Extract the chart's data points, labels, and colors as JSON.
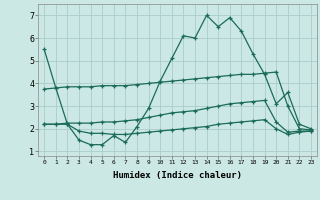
{
  "xlabel": "Humidex (Indice chaleur)",
  "bg_color": "#cce8e4",
  "grid_color": "#aaccca",
  "line_color": "#1a6b5a",
  "ylim": [
    0.8,
    7.5
  ],
  "xlim": [
    -0.5,
    23.5
  ],
  "yticks": [
    1,
    2,
    3,
    4,
    5,
    6,
    7
  ],
  "xticks": [
    0,
    1,
    2,
    3,
    4,
    5,
    6,
    7,
    8,
    9,
    10,
    11,
    12,
    13,
    14,
    15,
    16,
    17,
    18,
    19,
    20,
    21,
    22,
    23
  ],
  "series1_x": [
    0,
    1,
    2,
    3,
    4,
    5,
    6,
    7,
    8,
    9,
    10,
    11,
    12,
    13,
    14,
    15,
    16,
    17,
    18,
    19,
    20,
    21,
    22,
    23
  ],
  "series1_y": [
    5.5,
    3.8,
    2.2,
    1.5,
    1.3,
    1.3,
    1.7,
    1.4,
    2.1,
    2.9,
    4.1,
    5.1,
    6.1,
    6.0,
    7.0,
    6.5,
    6.9,
    6.3,
    5.3,
    4.4,
    3.1,
    3.6,
    2.2,
    2.0
  ],
  "series2_x": [
    0,
    1,
    2,
    3,
    4,
    5,
    6,
    7,
    8,
    9,
    10,
    11,
    12,
    13,
    14,
    15,
    16,
    17,
    18,
    19,
    20,
    21,
    22,
    23
  ],
  "series2_y": [
    3.75,
    3.8,
    3.85,
    3.85,
    3.85,
    3.9,
    3.9,
    3.9,
    3.95,
    4.0,
    4.05,
    4.1,
    4.15,
    4.2,
    4.25,
    4.3,
    4.35,
    4.4,
    4.4,
    4.45,
    4.5,
    3.0,
    2.0,
    1.95
  ],
  "series3_x": [
    0,
    1,
    2,
    3,
    4,
    5,
    6,
    7,
    8,
    9,
    10,
    11,
    12,
    13,
    14,
    15,
    16,
    17,
    18,
    19,
    20,
    21,
    22,
    23
  ],
  "series3_y": [
    2.2,
    2.2,
    2.25,
    2.25,
    2.25,
    2.3,
    2.3,
    2.35,
    2.4,
    2.5,
    2.6,
    2.7,
    2.75,
    2.8,
    2.9,
    3.0,
    3.1,
    3.15,
    3.2,
    3.25,
    2.3,
    1.85,
    1.9,
    1.9
  ],
  "series4_x": [
    0,
    1,
    2,
    3,
    4,
    5,
    6,
    7,
    8,
    9,
    10,
    11,
    12,
    13,
    14,
    15,
    16,
    17,
    18,
    19,
    20,
    21,
    22,
    23
  ],
  "series4_y": [
    2.2,
    2.2,
    2.2,
    1.9,
    1.8,
    1.8,
    1.75,
    1.75,
    1.8,
    1.85,
    1.9,
    1.95,
    2.0,
    2.05,
    2.1,
    2.2,
    2.25,
    2.3,
    2.35,
    2.4,
    2.0,
    1.75,
    1.85,
    1.9
  ]
}
